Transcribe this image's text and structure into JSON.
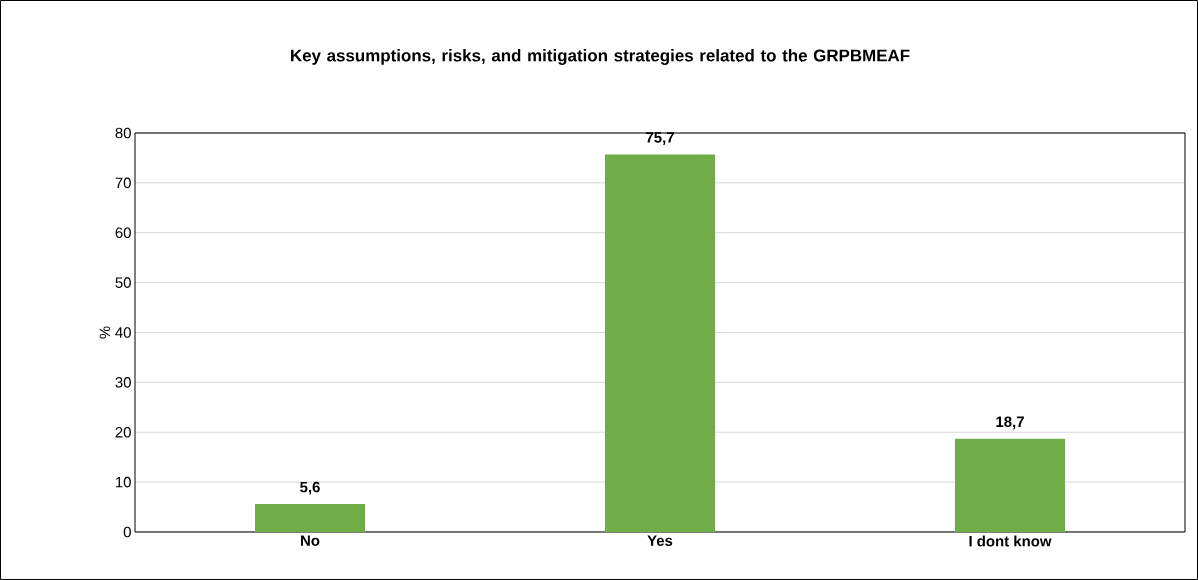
{
  "chart_data": {
    "type": "bar",
    "title": "Key assumptions, risks, and mitigation strategies related to the GRPBMEAF",
    "ylabel": "%",
    "categories": [
      "No",
      "Yes",
      "I dont know"
    ],
    "values": [
      5.6,
      75.7,
      18.7
    ],
    "value_labels": [
      "5,6",
      "75,7",
      "18,7"
    ],
    "color": "#70ad47",
    "ylim": [
      0,
      80
    ],
    "yticks": [
      0,
      10,
      20,
      30,
      40,
      50,
      60,
      70,
      80
    ],
    "grid": "y"
  }
}
